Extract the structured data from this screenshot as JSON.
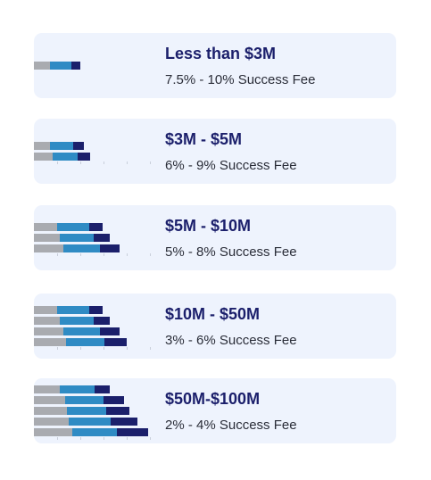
{
  "tiers": [
    {
      "title": "Less than $3M",
      "fee": "7.5% - 10% Success Fee",
      "bars": [
        [
          0.38,
          0.5,
          0.2
        ]
      ]
    },
    {
      "title": "$3M - $5M",
      "fee": "6% - 9% Success Fee",
      "bars": [
        [
          0.38,
          0.55,
          0.25
        ],
        [
          0.44,
          0.58,
          0.3
        ]
      ]
    },
    {
      "title": "$5M - $10M",
      "fee": "5% - 8% Success Fee",
      "bars": [
        [
          0.55,
          0.75,
          0.32
        ],
        [
          0.6,
          0.8,
          0.38
        ],
        [
          0.68,
          0.85,
          0.45
        ]
      ]
    },
    {
      "title": "$10M - $50M",
      "fee": "3% - 6% Success Fee",
      "bars": [
        [
          0.55,
          0.75,
          0.32
        ],
        [
          0.6,
          0.8,
          0.38
        ],
        [
          0.68,
          0.85,
          0.45
        ],
        [
          0.75,
          0.9,
          0.52
        ]
      ]
    },
    {
      "title": "$50M-$100M",
      "fee": "2% - 4% Success Fee",
      "bars": [
        [
          0.6,
          0.82,
          0.35
        ],
        [
          0.72,
          0.9,
          0.48
        ],
        [
          0.78,
          0.92,
          0.55
        ],
        [
          0.82,
          0.98,
          0.62
        ],
        [
          0.9,
          1.05,
          0.72
        ]
      ]
    }
  ],
  "colors": {
    "card_bg": "#eef3fd",
    "title": "#1b1f6b",
    "gray": "#a9abb0",
    "blue": "#2f8bc4",
    "navy": "#1b1f6b"
  }
}
